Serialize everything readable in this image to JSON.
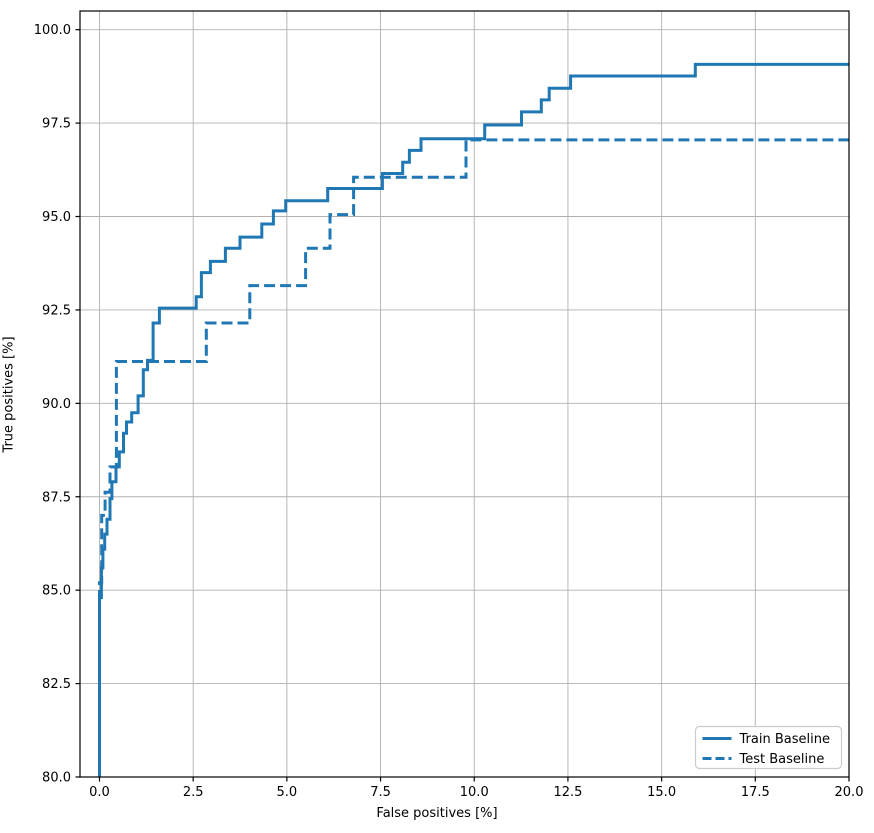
{
  "figure": {
    "background": "#ffffff"
  },
  "chart_data": {
    "type": "line",
    "subtype": "step-roc-curve",
    "title": "",
    "xlabel": "False positives [%]",
    "ylabel": "True positives [%]",
    "xlim": [
      -0.52,
      20.0
    ],
    "ylim": [
      80.0,
      100.5
    ],
    "xticks": [
      0.0,
      2.5,
      5.0,
      7.5,
      10.0,
      12.5,
      15.0,
      17.5,
      20.0
    ],
    "xtick_labels": [
      "0.0",
      "2.5",
      "5.0",
      "7.5",
      "10.0",
      "12.5",
      "15.0",
      "17.5",
      "20.0"
    ],
    "yticks": [
      80.0,
      82.5,
      85.0,
      87.5,
      90.0,
      92.5,
      95.0,
      97.5,
      100.0
    ],
    "ytick_labels": [
      "80.0",
      "82.5",
      "85.0",
      "87.5",
      "90.0",
      "92.5",
      "95.0",
      "97.5",
      "100.0"
    ],
    "grid": true,
    "grid_color": "#b0b0b0",
    "axis_color": "#000000",
    "tick_label_color": "#000000",
    "legend": {
      "position": "lower right",
      "items": [
        "Train Baseline",
        "Test Baseline"
      ]
    },
    "series": [
      {
        "name": "Train Baseline",
        "color": "#1f77b4",
        "line_style": "solid",
        "line_width": 3,
        "points": [
          [
            0.0,
            80.0
          ],
          [
            0.0,
            84.8
          ],
          [
            0.05,
            84.8
          ],
          [
            0.05,
            85.6
          ],
          [
            0.09,
            85.6
          ],
          [
            0.09,
            86.1
          ],
          [
            0.14,
            86.1
          ],
          [
            0.14,
            86.5
          ],
          [
            0.2,
            86.5
          ],
          [
            0.2,
            86.9
          ],
          [
            0.28,
            86.9
          ],
          [
            0.28,
            87.45
          ],
          [
            0.33,
            87.45
          ],
          [
            0.33,
            87.9
          ],
          [
            0.44,
            87.9
          ],
          [
            0.44,
            88.3
          ],
          [
            0.53,
            88.3
          ],
          [
            0.53,
            88.7
          ],
          [
            0.64,
            88.7
          ],
          [
            0.64,
            89.2
          ],
          [
            0.72,
            89.2
          ],
          [
            0.72,
            89.5
          ],
          [
            0.86,
            89.5
          ],
          [
            0.86,
            89.75
          ],
          [
            1.03,
            89.75
          ],
          [
            1.03,
            90.2
          ],
          [
            1.17,
            90.2
          ],
          [
            1.17,
            90.9
          ],
          [
            1.28,
            90.9
          ],
          [
            1.28,
            91.15
          ],
          [
            1.43,
            91.15
          ],
          [
            1.43,
            92.15
          ],
          [
            1.6,
            92.15
          ],
          [
            1.6,
            92.55
          ],
          [
            2.58,
            92.55
          ],
          [
            2.58,
            92.85
          ],
          [
            2.72,
            92.85
          ],
          [
            2.72,
            93.5
          ],
          [
            2.96,
            93.5
          ],
          [
            2.96,
            93.8
          ],
          [
            3.36,
            93.8
          ],
          [
            3.36,
            94.15
          ],
          [
            3.75,
            94.15
          ],
          [
            3.75,
            94.45
          ],
          [
            4.33,
            94.45
          ],
          [
            4.33,
            94.8
          ],
          [
            4.64,
            94.8
          ],
          [
            4.64,
            95.15
          ],
          [
            4.97,
            95.15
          ],
          [
            4.97,
            95.42
          ],
          [
            6.09,
            95.42
          ],
          [
            6.09,
            95.75
          ],
          [
            7.55,
            95.75
          ],
          [
            7.55,
            96.15
          ],
          [
            8.09,
            96.15
          ],
          [
            8.09,
            96.45
          ],
          [
            8.27,
            96.45
          ],
          [
            8.27,
            96.77
          ],
          [
            8.58,
            96.77
          ],
          [
            8.58,
            97.08
          ],
          [
            10.28,
            97.08
          ],
          [
            10.28,
            97.45
          ],
          [
            11.26,
            97.45
          ],
          [
            11.26,
            97.8
          ],
          [
            11.79,
            97.8
          ],
          [
            11.79,
            98.12
          ],
          [
            12.0,
            98.12
          ],
          [
            12.0,
            98.43
          ],
          [
            12.57,
            98.43
          ],
          [
            12.57,
            98.76
          ],
          [
            15.9,
            98.76
          ],
          [
            15.9,
            99.07
          ],
          [
            20.0,
            99.07
          ]
        ]
      },
      {
        "name": "Test Baseline",
        "color": "#1f77b4",
        "line_style": "dashed",
        "line_width": 3,
        "dash_array": "11 5",
        "points": [
          [
            0.0,
            80.0
          ],
          [
            0.0,
            85.2
          ],
          [
            0.06,
            85.2
          ],
          [
            0.06,
            87.0
          ],
          [
            0.15,
            87.0
          ],
          [
            0.15,
            87.62
          ],
          [
            0.28,
            87.62
          ],
          [
            0.28,
            88.3
          ],
          [
            0.45,
            88.3
          ],
          [
            0.45,
            91.12
          ],
          [
            2.85,
            91.12
          ],
          [
            2.85,
            92.15
          ],
          [
            4.01,
            92.15
          ],
          [
            4.01,
            93.15
          ],
          [
            5.5,
            93.15
          ],
          [
            5.5,
            94.15
          ],
          [
            6.15,
            94.15
          ],
          [
            6.15,
            95.05
          ],
          [
            6.78,
            95.05
          ],
          [
            6.78,
            96.05
          ],
          [
            9.78,
            96.05
          ],
          [
            9.78,
            97.05
          ],
          [
            20.0,
            97.05
          ]
        ]
      }
    ]
  }
}
